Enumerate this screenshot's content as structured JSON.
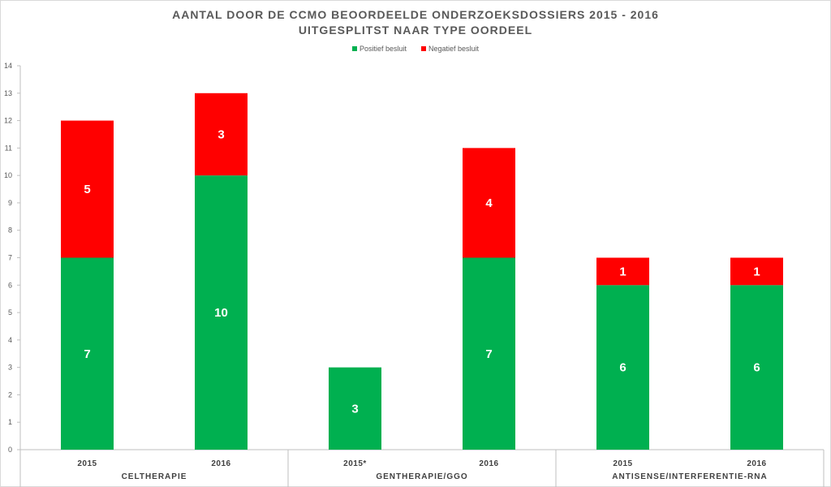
{
  "title_line1": "AANTAL DOOR DE CCMO BEOORDEELDE ONDERZOEKSDOSSIERS 2015 - 2016",
  "title_line2": "UITGESPLITST NAAR TYPE OORDEEL",
  "colors": {
    "positive": "#00B050",
    "negative": "#FF0000"
  },
  "chart_data": {
    "type": "bar",
    "stacked": true,
    "title": "AANTAL DOOR DE CCMO BEOORDEELDE ONDERZOEKSDOSSIERS 2015 - 2016 UITGESPLITST NAAR TYPE OORDEEL",
    "categories": [
      "2015",
      "2016",
      "2015*",
      "2016",
      "2015",
      "2016"
    ],
    "groups": [
      {
        "label": "CELTHERAPIE",
        "count": 2
      },
      {
        "label": "GENTHERAPIE/GGO",
        "count": 2
      },
      {
        "label": "ANTISENSE/INTERFERENTIE-RNA",
        "count": 2
      }
    ],
    "series": [
      {
        "name": "Positief besluit",
        "color": "#00B050",
        "values": [
          7,
          10,
          3,
          7,
          6,
          6
        ]
      },
      {
        "name": "Negatief besluit",
        "color": "#FF0000",
        "values": [
          5,
          3,
          0,
          4,
          1,
          1
        ]
      }
    ],
    "data_labels": {
      "Positief besluit": [
        "7",
        "10",
        "3",
        "7",
        "6",
        "6"
      ],
      "Negatief besluit": [
        "5",
        "3",
        "",
        "4",
        "1",
        "1"
      ]
    },
    "yticks": [
      "0",
      "1",
      "2",
      "3",
      "4",
      "5",
      "6",
      "7",
      "8",
      "9",
      "10",
      "11",
      "12",
      "13",
      "14"
    ],
    "ylim": [
      0,
      14
    ],
    "xlabel": "",
    "ylabel": "",
    "legend": "top-center",
    "grid": false
  }
}
